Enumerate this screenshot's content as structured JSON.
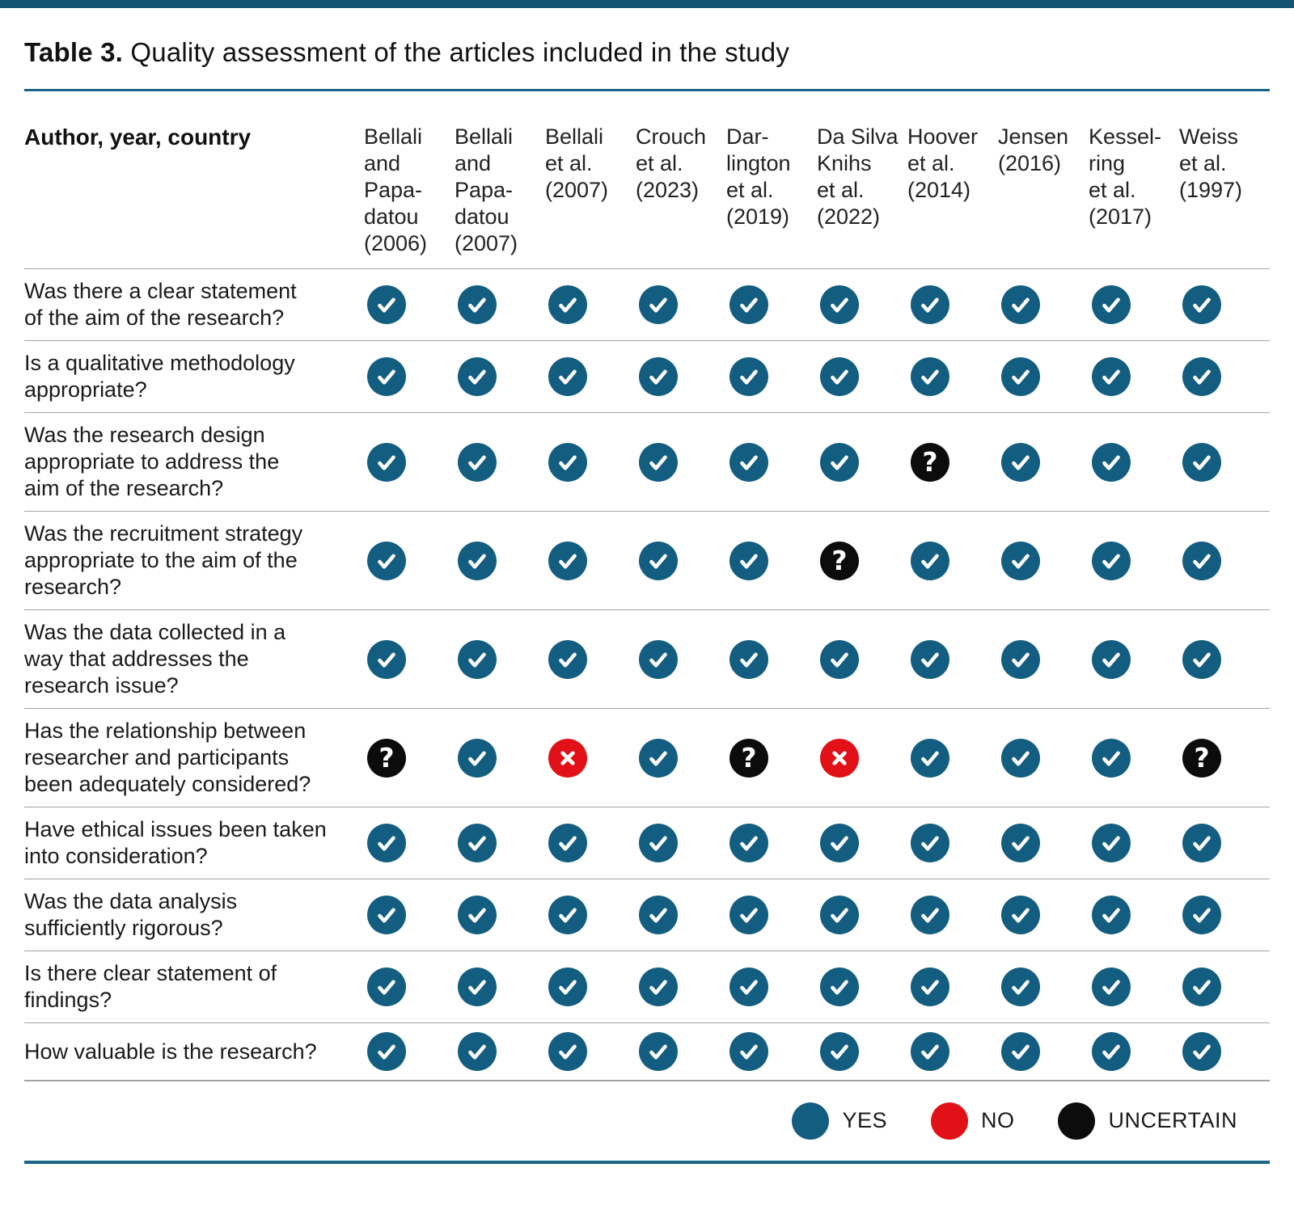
{
  "page": {
    "title_prefix": "Table 3.",
    "title_text": "Quality assessment of the articles included in the study"
  },
  "table": {
    "corner_header": "Author, year, country",
    "columns": [
      "Bellali\nand\nPapa-\ndatou\n(2006)",
      "Bellali\nand\nPapa-\ndatou\n(2007)",
      "Bellali\net al.\n(2007)",
      "Crouch\net al.\n(2023)",
      "Dar-\nlington\net al.\n(2019)",
      "Da Silva\nKnihs\net al.\n(2022)",
      "Hoover\net al.\n(2014)",
      "Jensen\n(2016)",
      "Kessel-\nring\net al.\n(2017)",
      "Weiss\net al.\n(1997)"
    ],
    "rows": [
      {
        "question": "Was there a clear statement\nof the aim of the research?",
        "ratings": [
          "yes",
          "yes",
          "yes",
          "yes",
          "yes",
          "yes",
          "yes",
          "yes",
          "yes",
          "yes"
        ]
      },
      {
        "question": "Is a qualitative methodology\nappropriate?",
        "ratings": [
          "yes",
          "yes",
          "yes",
          "yes",
          "yes",
          "yes",
          "yes",
          "yes",
          "yes",
          "yes"
        ]
      },
      {
        "question": "Was the research design\nappropriate to address the\naim of the research?",
        "ratings": [
          "yes",
          "yes",
          "yes",
          "yes",
          "yes",
          "yes",
          "uncertain",
          "yes",
          "yes",
          "yes"
        ]
      },
      {
        "question": "Was the recruitment strategy\nappropriate to the aim of the\nresearch?",
        "ratings": [
          "yes",
          "yes",
          "yes",
          "yes",
          "yes",
          "uncertain",
          "yes",
          "yes",
          "yes",
          "yes"
        ]
      },
      {
        "question": "Was the data collected in a\nway that addresses the\nresearch issue?",
        "ratings": [
          "yes",
          "yes",
          "yes",
          "yes",
          "yes",
          "yes",
          "yes",
          "yes",
          "yes",
          "yes"
        ]
      },
      {
        "question": "Has the relationship between\nresearcher and participants\nbeen adequately considered?",
        "ratings": [
          "uncertain",
          "yes",
          "no",
          "yes",
          "uncertain",
          "no",
          "yes",
          "yes",
          "yes",
          "uncertain"
        ]
      },
      {
        "question": "Have ethical issues been taken\ninto consideration?",
        "ratings": [
          "yes",
          "yes",
          "yes",
          "yes",
          "yes",
          "yes",
          "yes",
          "yes",
          "yes",
          "yes"
        ]
      },
      {
        "question": "Was the data analysis\nsufficiently rigorous?",
        "ratings": [
          "yes",
          "yes",
          "yes",
          "yes",
          "yes",
          "yes",
          "yes",
          "yes",
          "yes",
          "yes"
        ]
      },
      {
        "question": "Is there clear statement of\nfindings?",
        "ratings": [
          "yes",
          "yes",
          "yes",
          "yes",
          "yes",
          "yes",
          "yes",
          "yes",
          "yes",
          "yes"
        ]
      },
      {
        "question": "How valuable is the research?",
        "ratings": [
          "yes",
          "yes",
          "yes",
          "yes",
          "yes",
          "yes",
          "yes",
          "yes",
          "yes",
          "yes"
        ]
      }
    ]
  },
  "legend": {
    "items": [
      {
        "type": "yes",
        "label": "YES"
      },
      {
        "type": "no",
        "label": "NO"
      },
      {
        "type": "uncertain",
        "label": "UNCERTAIN"
      }
    ]
  },
  "icons": {
    "yes": "check",
    "no": "cross",
    "uncertain": "?"
  },
  "colors": {
    "yes": "#135e80",
    "no": "#e21117",
    "uncertain": "#0c0c0c",
    "rule_teal": "#1a6687",
    "top_bar": "#14536f",
    "separator": "#a3a3a3"
  }
}
